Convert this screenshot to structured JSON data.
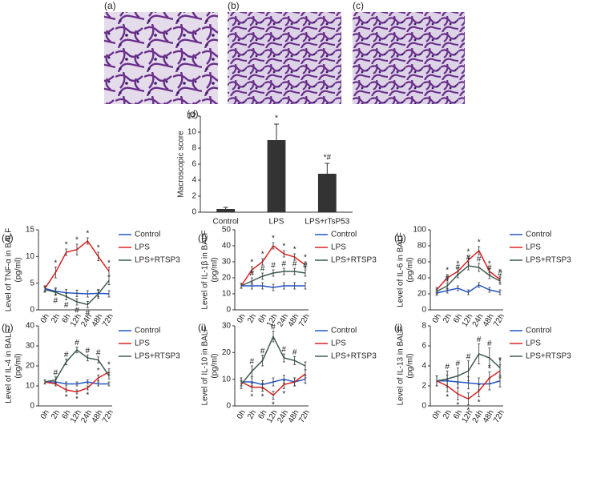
{
  "images": [
    {
      "label": "(a)"
    },
    {
      "label": "(b)"
    },
    {
      "label": "(c)"
    }
  ],
  "chart_data": [
    {
      "type": "bar",
      "label": "(d)",
      "ylabel": "Macroscopic score",
      "categories": [
        "Control",
        "LPS",
        "LPS+rTsP53"
      ],
      "values": [
        0.4,
        9,
        4.8
      ],
      "errors": [
        0.2,
        2,
        1.3
      ],
      "significance": [
        null,
        "*",
        "*#"
      ],
      "color": "#333333",
      "ylim": [
        0,
        12
      ],
      "yticks": [
        0,
        2,
        4,
        6,
        8,
        10,
        12
      ]
    },
    {
      "type": "line",
      "label": "(e)",
      "ylabel": "Level of TNF-α in BALF",
      "yunit": "(pg/ml)",
      "categories": [
        "0h",
        "2h",
        "6h",
        "12h",
        "24h",
        "48h",
        "72h"
      ],
      "ylim": [
        0,
        15
      ],
      "yticks": [
        0,
        5,
        10,
        15
      ],
      "series": [
        {
          "name": "Control",
          "color": "#2255cc",
          "values": [
            4,
            3.5,
            3.2,
            3.1,
            3,
            3.1,
            3
          ],
          "errors": [
            0.5,
            0.6,
            0.6,
            0.6,
            0.6,
            0.6,
            0.6
          ],
          "significance": [
            null,
            null,
            null,
            null,
            null,
            null,
            null
          ]
        },
        {
          "name": "LPS",
          "color": "#e02020",
          "values": [
            4,
            7,
            10.8,
            11.3,
            12.9,
            10,
            7.2
          ],
          "errors": [
            0.5,
            1,
            0.6,
            1,
            0.6,
            0.8,
            0.8
          ],
          "significance": [
            null,
            "*",
            "*",
            "*",
            "*",
            "*",
            "*"
          ]
        },
        {
          "name": "LPS+RTSP3",
          "color": "#3d5c50",
          "values": [
            3.8,
            3.3,
            2.5,
            1.5,
            1,
            3,
            5.5
          ],
          "errors": [
            0.5,
            0.6,
            0.6,
            0.6,
            0.6,
            0.8,
            0.8
          ],
          "significance": [
            null,
            "#",
            "#",
            "#",
            "#",
            null,
            null
          ]
        }
      ]
    },
    {
      "type": "line",
      "label": "(f)",
      "ylabel": "Level of IL-1β in BALF",
      "yunit": "(pg/ml)",
      "categories": [
        "0h",
        "2h",
        "6h",
        "12h",
        "24h",
        "48h",
        "72h"
      ],
      "ylim": [
        0,
        50
      ],
      "yticks": [
        0,
        10,
        20,
        30,
        40,
        50
      ],
      "series": [
        {
          "name": "Control",
          "color": "#2255cc",
          "values": [
            15,
            15,
            15,
            14,
            15,
            15,
            15
          ],
          "errors": [
            1.5,
            2,
            2,
            2,
            2,
            2,
            2
          ],
          "significance": [
            null,
            null,
            null,
            null,
            null,
            null,
            null
          ]
        },
        {
          "name": "LPS",
          "color": "#e02020",
          "values": [
            15,
            25,
            30,
            40,
            35,
            33,
            28
          ],
          "errors": [
            1.5,
            2,
            2,
            2,
            2,
            2,
            2
          ],
          "significance": [
            null,
            "*",
            "*",
            "*",
            "*",
            "*",
            "*"
          ]
        },
        {
          "name": "LPS+RTSP3",
          "color": "#3d5c50",
          "values": [
            15,
            18,
            21,
            23,
            24,
            24,
            23
          ],
          "errors": [
            1.5,
            2,
            2,
            2,
            2,
            2,
            2
          ],
          "significance": [
            null,
            "#",
            "#",
            "#",
            "#",
            "#",
            "#"
          ]
        }
      ]
    },
    {
      "type": "line",
      "label": "(g)",
      "ylabel": "Level of IL-6 in BALF",
      "yunit": "(pg/ml)",
      "categories": [
        "0h",
        "2h",
        "6h",
        "12h",
        "24h",
        "48h",
        "72h"
      ],
      "ylim": [
        0,
        100
      ],
      "yticks": [
        0,
        20,
        40,
        60,
        80,
        100
      ],
      "series": [
        {
          "name": "Control",
          "color": "#2255cc",
          "values": [
            21,
            24,
            27,
            22,
            31,
            25,
            22
          ],
          "errors": [
            3,
            3,
            3,
            3,
            3,
            3,
            3
          ],
          "significance": [
            null,
            null,
            null,
            null,
            null,
            null,
            null
          ]
        },
        {
          "name": "LPS",
          "color": "#e02020",
          "values": [
            25,
            40,
            48,
            62,
            74,
            48,
            38
          ],
          "errors": [
            3,
            4,
            4,
            5,
            5,
            4,
            4
          ],
          "significance": [
            null,
            "*",
            "*",
            "*",
            "*",
            "*",
            "*"
          ]
        },
        {
          "name": "LPS+RTSP3",
          "color": "#3d5c50",
          "values": [
            23,
            30,
            44,
            55,
            53,
            43,
            36
          ],
          "errors": [
            3,
            4,
            4,
            5,
            5,
            4,
            4
          ],
          "significance": [
            null,
            "#",
            "#",
            "#",
            "#",
            "#",
            "#"
          ]
        }
      ]
    },
    {
      "type": "line",
      "label": "(h)",
      "ylabel": "Level of IL-4 in BALF",
      "yunit": "(pg/ml)",
      "categories": [
        "0h",
        "2h",
        "6h",
        "12h",
        "24h",
        "48h",
        "72h"
      ],
      "ylim": [
        0,
        40
      ],
      "yticks": [
        0,
        10,
        20,
        30,
        40
      ],
      "series": [
        {
          "name": "Control",
          "color": "#2255cc",
          "values": [
            12,
            12,
            11,
            11,
            12,
            11,
            11
          ],
          "errors": [
            1,
            1,
            1,
            1,
            1,
            1,
            1
          ],
          "significance": [
            null,
            null,
            null,
            null,
            null,
            null,
            null
          ]
        },
        {
          "name": "LPS",
          "color": "#e02020",
          "values": [
            12,
            11,
            8,
            7,
            9,
            14,
            17
          ],
          "errors": [
            1,
            1,
            1,
            1,
            1,
            1.5,
            1.5
          ],
          "significance": [
            null,
            null,
            "*",
            "*",
            "*",
            "*",
            "*"
          ]
        },
        {
          "name": "LPS+RTSP3",
          "color": "#3d5c50",
          "values": [
            12,
            13,
            22,
            28,
            24,
            23,
            15
          ],
          "errors": [
            1,
            1.5,
            1.5,
            1.5,
            1.5,
            1.5,
            1.5
          ],
          "significance": [
            null,
            "#",
            "#",
            "#",
            "#",
            "#",
            null
          ]
        }
      ]
    },
    {
      "type": "line",
      "label": "(i)",
      "ylabel": "Level of IL-10 in BALF",
      "yunit": "(pg/ml)",
      "categories": [
        "0h",
        "2h",
        "6h",
        "12h",
        "24h",
        "48h",
        "72h"
      ],
      "ylim": [
        0,
        30
      ],
      "yticks": [
        0,
        10,
        20,
        30
      ],
      "series": [
        {
          "name": "Control",
          "color": "#2255cc",
          "values": [
            9,
            9,
            8,
            9,
            10,
            9,
            10
          ],
          "errors": [
            1.5,
            1.5,
            1.5,
            1.5,
            1.5,
            1.5,
            1.5
          ],
          "significance": [
            null,
            null,
            null,
            null,
            null,
            null,
            null
          ]
        },
        {
          "name": "LPS",
          "color": "#e02020",
          "values": [
            9,
            7,
            7,
            4,
            8,
            9,
            12
          ],
          "errors": [
            1.5,
            1.5,
            1.5,
            1.5,
            1.5,
            1.5,
            1.5
          ],
          "significance": [
            null,
            "*",
            "*",
            "*",
            "*",
            null,
            null
          ]
        },
        {
          "name": "LPS+RTSP3",
          "color": "#3d5c50",
          "values": [
            8,
            13,
            17,
            26,
            18,
            17,
            15
          ],
          "errors": [
            1.5,
            2,
            2,
            2,
            1.5,
            1.5,
            1.5
          ],
          "significance": [
            null,
            "#",
            "#",
            "#",
            "#",
            "#",
            null
          ]
        }
      ]
    },
    {
      "type": "line",
      "label": "(j)",
      "ylabel": "Level of IL-13 in BALF",
      "yunit": "(pg/ml)",
      "categories": [
        "0h",
        "2h",
        "6h",
        "12h",
        "24h",
        "48h",
        "72h"
      ],
      "ylim": [
        0,
        8
      ],
      "yticks": [
        0,
        2,
        4,
        6,
        8
      ],
      "series": [
        {
          "name": "Control",
          "color": "#2255cc",
          "values": [
            2.5,
            2.5,
            2.4,
            2.3,
            2.2,
            2.2,
            2.5
          ],
          "errors": [
            0.5,
            0.6,
            0.6,
            0.6,
            0.6,
            0.6,
            0.6
          ],
          "significance": [
            null,
            null,
            null,
            null,
            null,
            null,
            null
          ]
        },
        {
          "name": "LPS",
          "color": "#e02020",
          "values": [
            2.5,
            2,
            1.2,
            0.7,
            1.5,
            2.8,
            3.5
          ],
          "errors": [
            0.5,
            0.6,
            0.6,
            0.6,
            0.6,
            0.6,
            0.6
          ],
          "significance": [
            null,
            "*",
            "*",
            "*",
            "*",
            "*",
            "*"
          ]
        },
        {
          "name": "LPS+RTSP3",
          "color": "#3d5c50",
          "values": [
            2.5,
            2.7,
            3,
            3.5,
            5.2,
            4.8,
            3.8
          ],
          "errors": [
            0.5,
            0.8,
            0.8,
            1,
            1,
            1,
            1
          ],
          "significance": [
            null,
            "#",
            "#",
            "#",
            "#",
            "#",
            null
          ]
        }
      ]
    }
  ]
}
